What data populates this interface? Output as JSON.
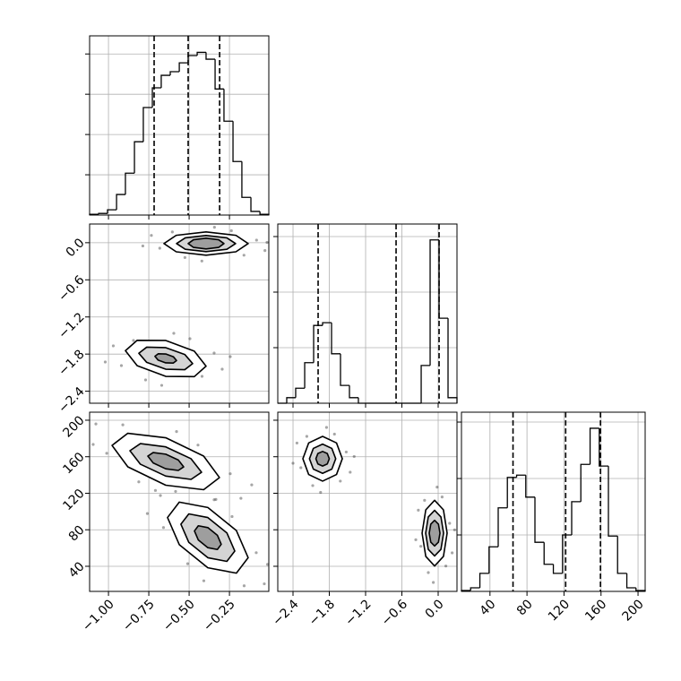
{
  "chart_data": [
    {
      "type": "histogram",
      "color": "#000000",
      "grid": true,
      "xtick_labels": false,
      "ytick_labels": false,
      "bins": [
        -1.117,
        -1.061,
        -1.006,
        -0.95,
        -0.895,
        -0.839,
        -0.784,
        -0.728,
        -0.673,
        -0.617,
        -0.561,
        -0.506,
        -0.45,
        -0.395,
        -0.339,
        -0.284,
        -0.228,
        -0.173,
        -0.117,
        -0.061,
        -0.006
      ],
      "values": [
        20,
        40,
        130,
        510,
        1040,
        1820,
        2670,
        3160,
        3470,
        3560,
        3780,
        3960,
        4040,
        3870,
        3130,
        2330,
        1330,
        440,
        90,
        20
      ],
      "quantiles": [
        -0.717,
        -0.506,
        -0.311
      ],
      "xlim": [
        -1.117,
        -0.006
      ],
      "ylim": [
        0,
        4450
      ],
      "xticks": [
        -1,
        -0.75,
        -0.5,
        -0.25
      ],
      "yticks": [
        1000,
        2000,
        3000,
        4000
      ]
    },
    {
      "type": "scatter",
      "color": "#000000",
      "grid": true,
      "xtick_labels": false,
      "ytick_labels": true,
      "x": [
        -0.082,
        -0.682,
        -0.238,
        -0.526,
        -0.03,
        -0.734,
        -0.343,
        -0.421,
        -0.16,
        -0.604,
        -0.017,
        -0.787,
        -0.345,
        -0.92,
        -0.495,
        -0.77,
        -0.295,
        -0.97,
        -0.595,
        -0.67,
        -0.42,
        -0.845,
        -0.245,
        -1.02
      ],
      "y": [
        0.042,
        -0.089,
        0.193,
        -0.24,
        -0.127,
        0.118,
        0.249,
        -0.296,
        -0.202,
        0.174,
        0.005,
        -0.052,
        -1.783,
        -1.986,
        -1.551,
        -2.218,
        -2.044,
        -1.667,
        -1.464,
        -2.305,
        -2.16,
        -1.58,
        -1.841,
        -1.928
      ],
      "contours": [
        {
          "x": [
            -0.134,
            -0.21,
            -0.395,
            -0.58,
            -0.656,
            -0.58,
            -0.395,
            -0.21
          ],
          "y": [
            -0.014,
            0.119,
            0.174,
            0.119,
            -0.014,
            -0.147,
            -0.202,
            -0.147
          ]
        },
        {
          "x": [
            -0.212,
            -0.266,
            -0.395,
            -0.524,
            -0.578,
            -0.524,
            -0.395,
            -0.266
          ],
          "y": [
            -0.014,
            0.078,
            0.116,
            0.078,
            -0.014,
            -0.106,
            -0.144,
            -0.106
          ]
        },
        {
          "x": [
            -0.284,
            -0.317,
            -0.395,
            -0.473,
            -0.506,
            -0.473,
            -0.395,
            -0.317
          ],
          "y": [
            -0.014,
            0.048,
            0.073,
            0.048,
            -0.014,
            -0.076,
            -0.101,
            -0.076
          ]
        },
        {
          "x": [
            -0.395,
            -0.468,
            -0.645,
            -0.822,
            -0.895,
            -0.822,
            -0.645,
            -0.468
          ],
          "y": [
            -1.995,
            -1.753,
            -1.58,
            -1.577,
            -1.745,
            -1.987,
            -2.16,
            -2.164
          ]
        },
        {
          "x": [
            -0.478,
            -0.527,
            -0.645,
            -0.763,
            -0.812,
            -0.763,
            -0.645,
            -0.527
          ],
          "y": [
            -1.954,
            -1.806,
            -1.696,
            -1.688,
            -1.786,
            -1.934,
            -2.044,
            -2.052
          ]
        },
        {
          "x": [
            -0.578,
            -0.598,
            -0.645,
            -0.692,
            -0.712,
            -0.692,
            -0.645,
            -0.598
          ],
          "y": [
            -1.904,
            -1.842,
            -1.798,
            -1.795,
            -1.836,
            -1.898,
            -1.942,
            -1.945
          ]
        }
      ],
      "xlim": [
        -1.117,
        -0.006
      ],
      "ylim": [
        -2.594,
        0.302
      ],
      "xticks": [
        -1,
        -0.75,
        -0.5,
        -0.25
      ],
      "yticks": [
        {
          "value": 0,
          "label": "0.0"
        },
        {
          "value": -0.6,
          "label": "−0.6"
        },
        {
          "value": -1.2,
          "label": "−1.2"
        },
        {
          "value": -1.8,
          "label": "−1.8"
        },
        {
          "value": -2.4,
          "label": "−2.4"
        }
      ]
    },
    {
      "type": "scatter",
      "color": "#000000",
      "grid": true,
      "xtick_labels": true,
      "ytick_labels": true,
      "x": [
        -0.245,
        -1.011,
        -0.445,
        -0.812,
        -0.179,
        -1.078,
        -0.578,
        -0.678,
        -0.345,
        -0.911,
        -0.112,
        -1.095,
        -0.084,
        -0.659,
        -0.234,
        -0.509,
        -0.034,
        -0.709,
        -0.334,
        -0.409,
        -0.159,
        -0.584,
        -0.014,
        -0.759
      ],
      "y": [
        141.4,
        163.8,
        172.8,
        132.5,
        114.5,
        195.9,
        187.6,
        117.5,
        112.9,
        194.9,
        129.2,
        173.5,
        54.9,
        82.4,
        94.5,
        42.8,
        20.8,
        123.1,
        113.2,
        24.1,
        18.6,
        122.0,
        42.1,
        97.8
      ],
      "contours": [
        {
          "x": [
            -0.312,
            -0.41,
            -0.645,
            -0.88,
            -0.978,
            -0.88,
            -0.645,
            -0.41
          ],
          "y": [
            137.2,
            160.7,
            180.8,
            185.7,
            172.4,
            148.9,
            128.8,
            123.9
          ]
        },
        {
          "x": [
            -0.423,
            -0.488,
            -0.645,
            -0.802,
            -0.867,
            -0.802,
            -0.645,
            -0.488
          ],
          "y": [
            143.0,
            157.8,
            170.8,
            174.4,
            166.6,
            151.8,
            138.8,
            135.2
          ]
        },
        {
          "x": [
            -0.534,
            -0.567,
            -0.645,
            -0.723,
            -0.756,
            -0.723,
            -0.645,
            -0.567
          ],
          "y": [
            148.9,
            156.4,
            162.8,
            164.6,
            160.7,
            153.2,
            146.8,
            145.0
          ]
        },
        {
          "x": [
            -0.134,
            -0.207,
            -0.384,
            -0.561,
            -0.634,
            -0.561,
            -0.384,
            -0.207
          ],
          "y": [
            49.4,
            79.1,
            104.4,
            110.3,
            93.4,
            63.7,
            38.4,
            32.5
          ]
        },
        {
          "x": [
            -0.217,
            -0.266,
            -0.384,
            -0.502,
            -0.551,
            -0.502,
            -0.384,
            -0.266
          ],
          "y": [
            56.7,
            76.6,
            93.4,
            97.4,
            86.1,
            66.2,
            49.4,
            45.4
          ]
        },
        {
          "x": [
            -0.301,
            -0.325,
            -0.384,
            -0.443,
            -0.467,
            -0.443,
            -0.384,
            -0.325
          ],
          "y": [
            64.1,
            74.0,
            82.4,
            84.4,
            78.7,
            68.8,
            60.4,
            58.4
          ]
        }
      ],
      "xlim": [
        -1.117,
        -0.006
      ],
      "ylim": [
        12.5,
        208.8
      ],
      "xticks": [
        {
          "value": -1,
          "label": "−1.00"
        },
        {
          "value": -0.75,
          "label": "−0.75"
        },
        {
          "value": -0.5,
          "label": "−0.50"
        },
        {
          "value": -0.25,
          "label": "−0.25"
        }
      ],
      "yticks": [
        40,
        80,
        120,
        160,
        200
      ]
    },
    {
      "type": "histogram",
      "color": "#000000",
      "grid": true,
      "xtick_labels": false,
      "ytick_labels": false,
      "bins": [
        -2.652,
        -2.504,
        -2.356,
        -2.207,
        -2.059,
        -1.911,
        -1.763,
        -1.615,
        -1.467,
        -1.319,
        -1.17,
        -1.022,
        -0.874,
        -0.726,
        -0.578,
        -0.43,
        -0.281,
        -0.133,
        0.015,
        0.163,
        0.311
      ],
      "values": [
        0,
        100,
        270,
        730,
        1400,
        1450,
        890,
        320,
        100,
        0,
        0,
        0,
        0,
        0,
        0,
        0,
        680,
        2940,
        1530,
        100
      ],
      "quantiles": [
        -1.985,
        -0.696,
        0.015
      ],
      "xlim": [
        -2.652,
        0.311
      ],
      "ylim": [
        0,
        3226
      ],
      "xticks": [
        -2.4,
        -1.8,
        -1.2,
        -0.6,
        0
      ],
      "yticks": [
        1000,
        2000,
        3000
      ]
    },
    {
      "type": "scatter",
      "color": "#000000",
      "grid": true,
      "xtick_labels": true,
      "ytick_labels": false,
      "x": [
        -1.52,
        -2.27,
        -1.715,
        -2.074,
        -1.455,
        -2.335,
        -1.846,
        -1.944,
        -1.618,
        -2.172,
        -1.389,
        -2.4,
        0.189,
        -0.287,
        0.065,
        -0.163,
        0.231,
        -0.328,
        -0.018,
        -0.08,
        0.127,
        -0.225,
        0.272,
        -0.37
      ],
      "y": [
        165.2,
        148.0,
        184.8,
        128.4,
        143.1,
        175.0,
        192.1,
        121.0,
        133.3,
        182.3,
        160.3,
        152.9,
        87.1,
        61.9,
        115.9,
        33.1,
        54.7,
        101.5,
        126.7,
        22.3,
        40.3,
        112.3,
        79.9,
        69.1
      ],
      "contours": [
        {
          "x": [
            -1.585,
            -1.681,
            -1.911,
            -2.141,
            -2.237,
            -2.141,
            -1.911,
            -1.681
          ],
          "y": [
            157.8,
            175.1,
            182.3,
            175.1,
            157.8,
            140.5,
            133.3,
            140.5
          ]
        },
        {
          "x": [
            -1.694,
            -1.758,
            -1.911,
            -2.064,
            -2.128,
            -2.064,
            -1.911,
            -1.758
          ],
          "y": [
            157.8,
            169.1,
            173.8,
            169.1,
            157.8,
            146.5,
            141.8,
            146.5
          ]
        },
        {
          "x": [
            -1.8,
            -1.833,
            -1.911,
            -1.989,
            -2.022,
            -1.989,
            -1.911,
            -1.833
          ],
          "y": [
            157.8,
            163.5,
            165.8,
            163.5,
            157.8,
            152.1,
            149.8,
            152.1
          ]
        },
        {
          "x": [
            0.148,
            0.087,
            -0.059,
            -0.205,
            -0.266,
            -0.205,
            -0.059,
            0.087
          ],
          "y": [
            76.3,
            101.8,
            112.3,
            101.8,
            76.3,
            50.8,
            40.3,
            50.8
          ]
        },
        {
          "x": [
            0.089,
            0.046,
            -0.059,
            -0.164,
            -0.207,
            -0.164,
            -0.059,
            0.046
          ],
          "y": [
            76.3,
            94.0,
            101.3,
            94.0,
            76.3,
            58.6,
            51.3,
            58.6
          ]
        },
        {
          "x": [
            0.03,
            0.004,
            -0.059,
            -0.122,
            -0.148,
            -0.122,
            -0.059,
            0.004
          ],
          "y": [
            76.3,
            86.2,
            90.3,
            86.2,
            76.3,
            66.4,
            62.3,
            66.4
          ]
        }
      ],
      "xlim": [
        -2.652,
        0.311
      ],
      "ylim": [
        12.5,
        208.8
      ],
      "xticks": [
        {
          "value": -2.4,
          "label": "−2.4"
        },
        {
          "value": -1.8,
          "label": "−1.8"
        },
        {
          "value": -1.2,
          "label": "−1.2"
        },
        {
          "value": -0.6,
          "label": "−0.6"
        },
        {
          "value": 0,
          "label": "0.0"
        }
      ],
      "yticks": [
        40,
        80,
        120,
        160,
        200
      ]
    },
    {
      "type": "histogram",
      "color": "#000000",
      "grid": true,
      "xtick_labels": true,
      "ytick_labels": false,
      "bins": [
        9.2,
        19.1,
        29.1,
        39.0,
        48.9,
        58.8,
        68.8,
        78.7,
        88.6,
        98.5,
        108.5,
        118.4,
        128.3,
        138.2,
        148.2,
        158.1,
        168.0,
        177.9,
        187.9,
        197.8,
        207.7
      ],
      "values": [
        16,
        63,
        320,
        790,
        1480,
        2020,
        2060,
        1670,
        870,
        480,
        320,
        1000,
        1590,
        2250,
        2890,
        2220,
        980,
        320,
        63,
        16
      ],
      "quantiles": [
        64.9,
        121.8,
        159.4
      ],
      "xlim": [
        9.2,
        207.7
      ],
      "ylim": [
        0,
        3175
      ],
      "xticks": [
        40,
        80,
        120,
        160,
        200
      ],
      "yticks": [
        1000,
        2000,
        3000
      ]
    }
  ]
}
